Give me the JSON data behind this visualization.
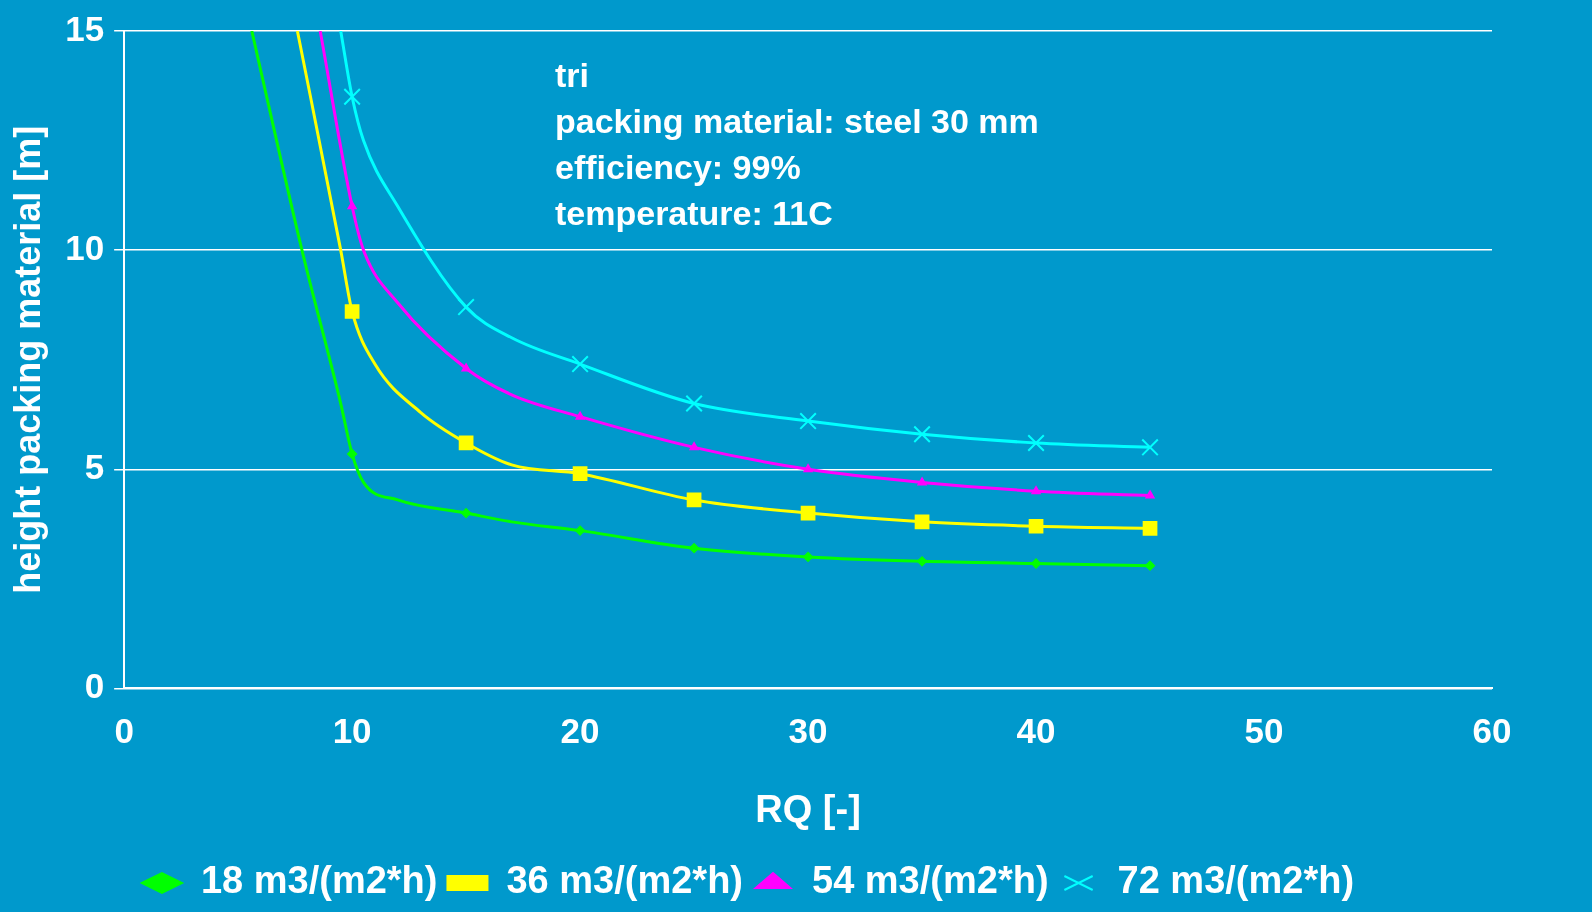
{
  "chart_data": {
    "type": "line",
    "xlabel": "RQ [-]",
    "ylabel": "height packing material [m]",
    "xlim": [
      0,
      60
    ],
    "xticks": [
      0,
      10,
      20,
      30,
      40,
      50,
      60
    ],
    "ylim": [
      0,
      15
    ],
    "yticks": [
      0,
      5,
      10,
      15
    ],
    "grid": "y",
    "legend": "bottom",
    "annotations": [
      "tri",
      "packing material: steel 30 mm",
      "efficiency: 99%",
      "temperature: 11C"
    ],
    "series": [
      {
        "name": "18 m3/(m2*h)",
        "color": "#00ff00",
        "marker": "diamond",
        "x": [
          5.6,
          7.8,
          9.5,
          10,
          10.5,
          12,
          15,
          17,
          20,
          25,
          30,
          35,
          40,
          45
        ],
        "values": [
          15,
          10,
          6.5,
          5.35,
          4.7,
          4.3,
          4.0,
          3.8,
          3.6,
          3.2,
          3.0,
          2.9,
          2.85,
          2.8
        ]
      },
      {
        "name": "36 m3/(m2*h)",
        "color": "#ffff00",
        "marker": "square",
        "x": [
          7.6,
          9.5,
          10,
          11,
          13,
          15,
          17,
          20,
          25,
          30,
          35,
          40,
          45
        ],
        "values": [
          15,
          10,
          8.6,
          7.4,
          6.3,
          5.6,
          5.1,
          4.9,
          4.3,
          4.0,
          3.8,
          3.7,
          3.65
        ]
      },
      {
        "name": "54 m3/(m2*h)",
        "color": "#ff00ff",
        "marker": "triangle",
        "x": [
          8.6,
          10,
          10.5,
          12,
          15,
          17,
          20,
          25,
          30,
          35,
          40,
          45
        ],
        "values": [
          15,
          11,
          10,
          8.8,
          7.3,
          6.7,
          6.2,
          5.5,
          5.0,
          4.7,
          4.5,
          4.4
        ]
      },
      {
        "name": "72 m3/(m2*h)",
        "color": "#00ffff",
        "marker": "cross",
        "x": [
          9.5,
          10,
          10.5,
          12,
          15,
          17,
          20,
          25,
          30,
          35,
          40,
          45
        ],
        "values": [
          15,
          13.5,
          12.5,
          11,
          8.7,
          8.0,
          7.4,
          6.5,
          6.1,
          5.8,
          5.6,
          5.5
        ]
      }
    ]
  }
}
